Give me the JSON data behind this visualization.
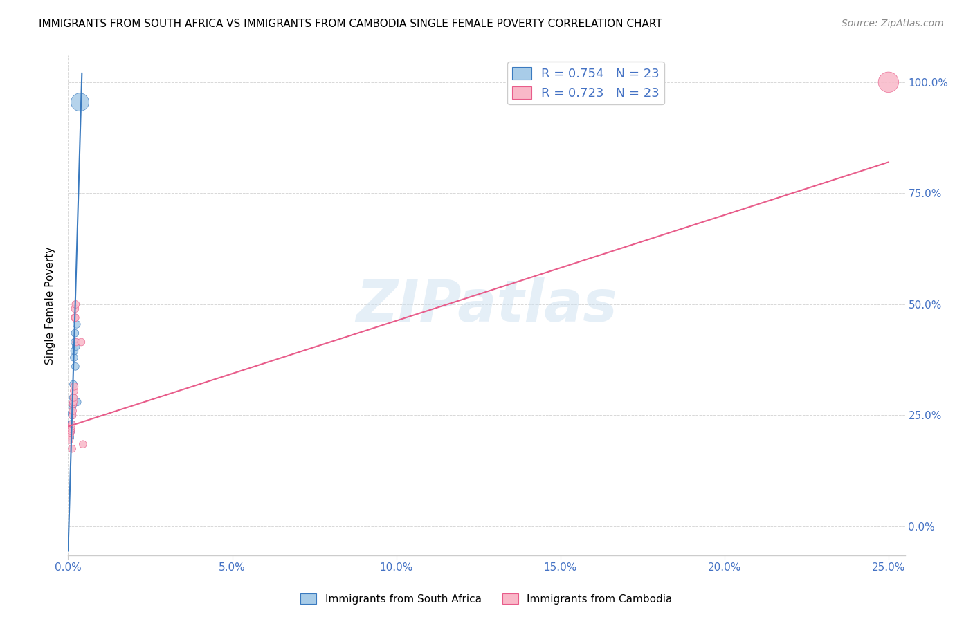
{
  "title": "IMMIGRANTS FROM SOUTH AFRICA VS IMMIGRANTS FROM CAMBODIA SINGLE FEMALE POVERTY CORRELATION CHART",
  "source": "Source: ZipAtlas.com",
  "ylabel": "Single Female Poverty",
  "watermark": "ZIPatlas",
  "legend_blue_r": "R = 0.754",
  "legend_blue_n": "N = 23",
  "legend_pink_r": "R = 0.723",
  "legend_pink_n": "N = 23",
  "blue_color": "#a8cce8",
  "pink_color": "#f9b8c8",
  "blue_line_color": "#3a7abf",
  "pink_line_color": "#e85c8a",
  "blue_scatter": [
    [
      0.0004,
      0.205
    ],
    [
      0.0005,
      0.215
    ],
    [
      0.0006,
      0.2
    ],
    [
      0.0007,
      0.225
    ],
    [
      0.0008,
      0.23
    ],
    [
      0.0009,
      0.215
    ],
    [
      0.001,
      0.22
    ],
    [
      0.001,
      0.23
    ],
    [
      0.0011,
      0.255
    ],
    [
      0.0012,
      0.25
    ],
    [
      0.0013,
      0.27
    ],
    [
      0.0014,
      0.275
    ],
    [
      0.0015,
      0.29
    ],
    [
      0.0016,
      0.32
    ],
    [
      0.0018,
      0.38
    ],
    [
      0.0019,
      0.395
    ],
    [
      0.002,
      0.415
    ],
    [
      0.0021,
      0.435
    ],
    [
      0.0022,
      0.36
    ],
    [
      0.0024,
      0.405
    ],
    [
      0.0026,
      0.455
    ],
    [
      0.0028,
      0.28
    ],
    [
      0.0036,
      0.955
    ]
  ],
  "pink_scatter": [
    [
      0.0004,
      0.195
    ],
    [
      0.0005,
      0.205
    ],
    [
      0.0007,
      0.21
    ],
    [
      0.0008,
      0.215
    ],
    [
      0.0009,
      0.22
    ],
    [
      0.001,
      0.225
    ],
    [
      0.0011,
      0.23
    ],
    [
      0.0012,
      0.175
    ],
    [
      0.0013,
      0.25
    ],
    [
      0.0014,
      0.26
    ],
    [
      0.0015,
      0.275
    ],
    [
      0.0016,
      0.28
    ],
    [
      0.0017,
      0.29
    ],
    [
      0.0018,
      0.305
    ],
    [
      0.0019,
      0.315
    ],
    [
      0.002,
      0.47
    ],
    [
      0.0021,
      0.49
    ],
    [
      0.0022,
      0.47
    ],
    [
      0.0023,
      0.5
    ],
    [
      0.0025,
      0.415
    ],
    [
      0.004,
      0.415
    ],
    [
      0.0045,
      0.185
    ],
    [
      0.25,
      1.0
    ]
  ],
  "blue_sizes_small": 60,
  "blue_sizes_large": 350,
  "pink_sizes_small": 60,
  "pink_sizes_large": 450,
  "blue_trendline_x": [
    0.0,
    0.0042
  ],
  "blue_trendline_y": [
    -0.055,
    1.02
  ],
  "pink_trendline_x": [
    0.0,
    0.25
  ],
  "pink_trendline_y": [
    0.225,
    0.82
  ],
  "xlim": [
    0.0,
    0.255
  ],
  "ylim": [
    -0.065,
    1.06
  ],
  "xticks": [
    0.0,
    0.05,
    0.1,
    0.15,
    0.2,
    0.25
  ],
  "xticklabels": [
    "0.0%",
    "5.0%",
    "10.0%",
    "15.0%",
    "20.0%",
    "25.0%"
  ],
  "yticks": [
    0.0,
    0.25,
    0.5,
    0.75,
    1.0
  ],
  "yticklabels_right": [
    "0.0%",
    "25.0%",
    "50.0%",
    "75.0%",
    "100.0%"
  ],
  "tick_color": "#4472c4",
  "grid_color": "#d8d8d8"
}
